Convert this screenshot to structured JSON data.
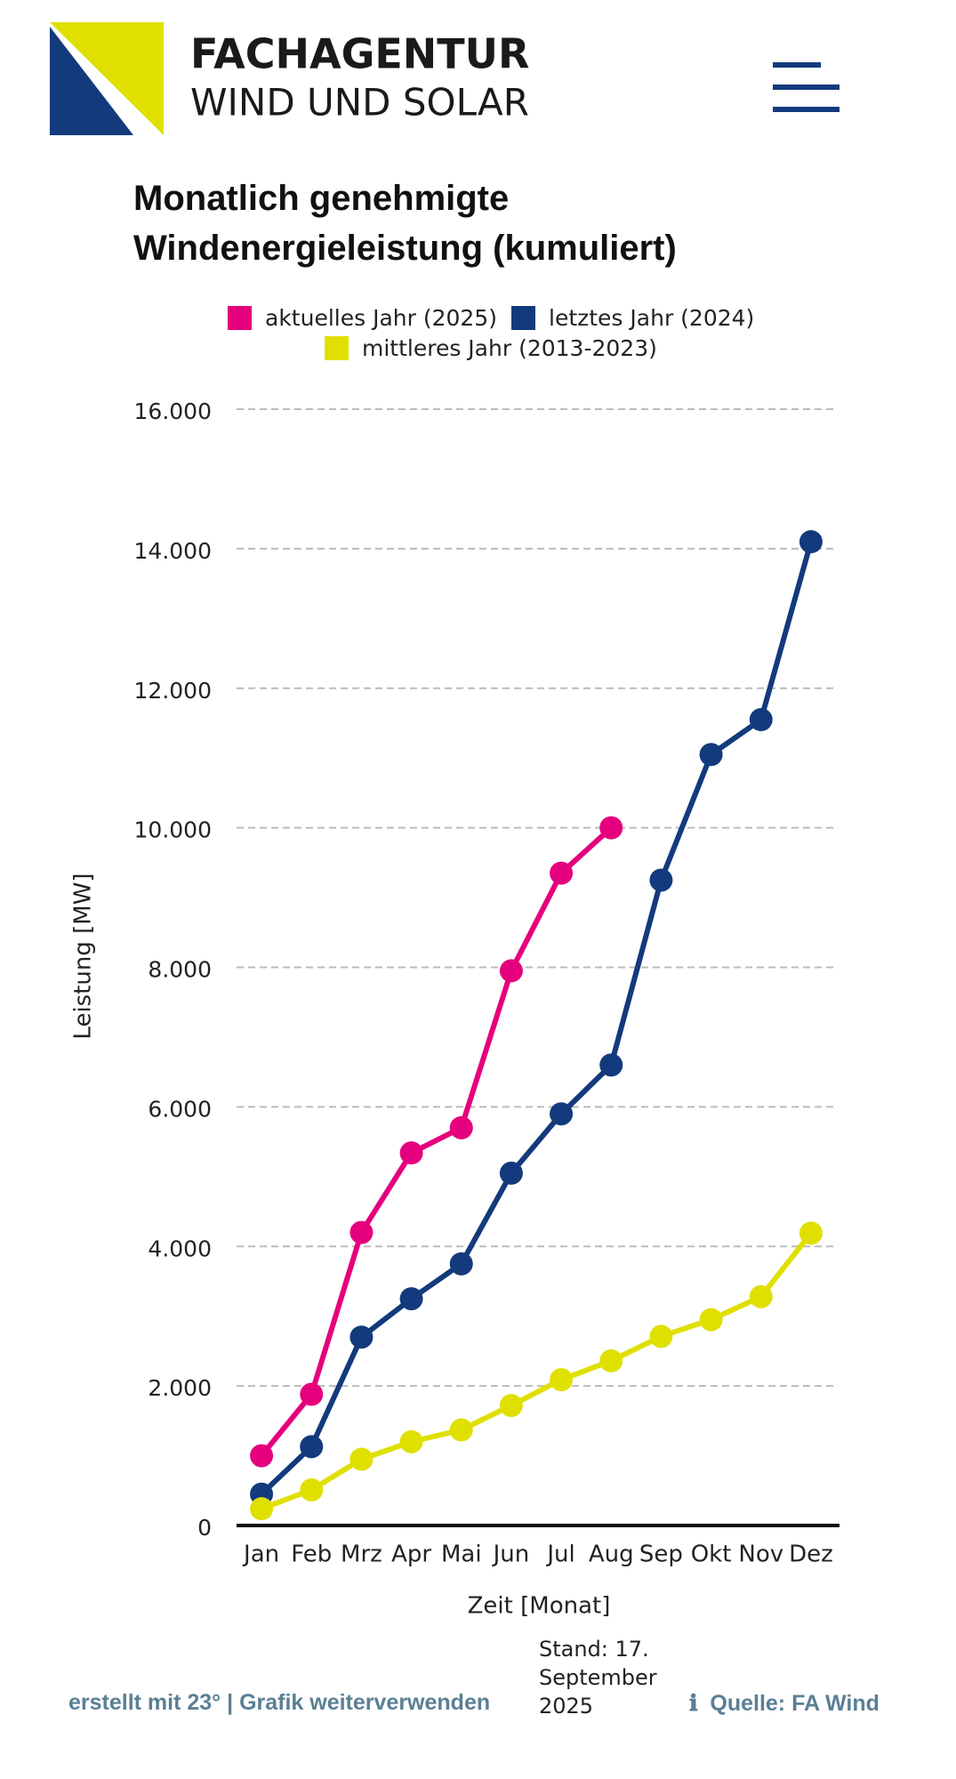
{
  "header": {
    "brand_top": "FACHAGENTUR",
    "brand_bottom": "WIND UND SOLAR"
  },
  "chart_data": {
    "type": "line",
    "title": "Monatlich genehmigte Windenergieleistung (kumuliert)",
    "x_label": "Zeit [Monat]",
    "y_label": "Leistung [MW]",
    "categories": [
      "Jan",
      "Feb",
      "Mrz",
      "Apr",
      "Mai",
      "Jun",
      "Jul",
      "Aug",
      "Sep",
      "Okt",
      "Nov",
      "Dez"
    ],
    "series": [
      {
        "name": "aktuelles Jahr (2025)",
        "color": "#e5007d",
        "values": [
          1000,
          1880,
          4200,
          5340,
          5700,
          7950,
          9350,
          10000,
          null,
          null,
          null,
          null
        ]
      },
      {
        "name": "letztes Jahr (2024)",
        "color": "#133a7c",
        "values": [
          450,
          1130,
          2700,
          3250,
          3750,
          5050,
          5900,
          6600,
          9250,
          11050,
          11550,
          14100
        ]
      },
      {
        "name": "mittleres Jahr (2013-2023)",
        "color": "#dfe000",
        "values": [
          240,
          510,
          950,
          1200,
          1370,
          1720,
          2090,
          2360,
          2710,
          2950,
          3280,
          4190
        ]
      }
    ],
    "ylim": [
      0,
      16000
    ],
    "yticks": [
      0,
      {
        "value": 2000,
        "label": "2.000"
      },
      {
        "value": 4000,
        "label": "4.000"
      },
      {
        "value": 6000,
        "label": "6.000"
      },
      {
        "value": 8000,
        "label": "8.000"
      },
      {
        "value": 10000,
        "label": "10.000"
      },
      {
        "value": 12000,
        "label": "12.000"
      },
      {
        "value": 14000,
        "label": "14.000"
      },
      {
        "value": 16000,
        "label": "16.000"
      }
    ],
    "grid": true
  },
  "footer": {
    "credit": "erstellt mit 23° | Grafik  weiterverwenden",
    "date": "Stand: 17. September 2025",
    "source": "Quelle: FA Wind"
  }
}
